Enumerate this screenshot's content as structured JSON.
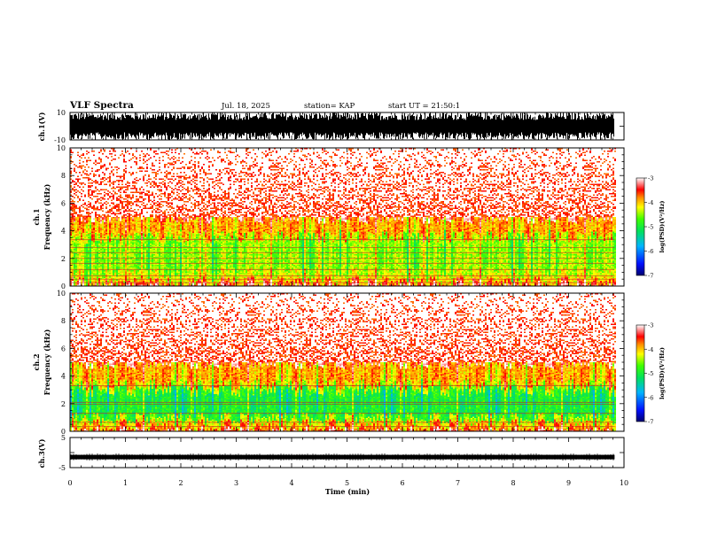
{
  "header": {
    "title": "VLF Spectra",
    "date": "Jul. 18, 2025",
    "station": "station= KAP",
    "start_ut": "start UT =  21:50:1"
  },
  "chart_data": [
    {
      "type": "line",
      "name": "ch1-waveform",
      "ylabel": "ch.1(V)",
      "ylim": [
        -10,
        10
      ],
      "y_tick_labels": [
        "10",
        "-10"
      ],
      "x_range_min": [
        0,
        9.83
      ],
      "description_values": {
        "amplitude_min": -10,
        "amplitude_max": 10
      }
    },
    {
      "type": "heatmap",
      "name": "ch1-spectrogram",
      "ylabel": "ch.1\nFrequency (kHz)",
      "ylim_khz": [
        0,
        10
      ],
      "y_tick_labels": [
        "0",
        "2",
        "4",
        "6",
        "8",
        "10"
      ],
      "x_range_min": [
        0,
        9.83
      ],
      "bands": [
        {
          "f_low": 0.0,
          "f_high": 0.3,
          "log_psd": -3.6
        },
        {
          "f_low": 0.3,
          "f_high": 1.0,
          "log_psd": -4.2
        },
        {
          "f_low": 1.0,
          "f_high": 3.6,
          "log_psd": -4.5
        },
        {
          "f_low": 3.6,
          "f_high": 5.0,
          "log_psd": -3.9
        },
        {
          "f_low": 5.0,
          "f_high": 10.0,
          "log_psd": -3.2
        }
      ]
    },
    {
      "type": "heatmap",
      "name": "ch2-spectrogram",
      "ylabel": "ch.2\nFrequency (kHz)",
      "ylim_khz": [
        0,
        10
      ],
      "y_tick_labels": [
        "0",
        "2",
        "4",
        "6",
        "8",
        "10"
      ],
      "x_range_min": [
        0,
        9.83
      ],
      "bands": [
        {
          "f_low": 0.0,
          "f_high": 0.5,
          "log_psd": -3.8
        },
        {
          "f_low": 0.5,
          "f_high": 1.0,
          "log_psd": -4.3
        },
        {
          "f_low": 1.0,
          "f_high": 3.0,
          "log_psd": -5.0
        },
        {
          "f_low": 3.0,
          "f_high": 3.4,
          "log_psd": -4.4
        },
        {
          "f_low": 3.4,
          "f_high": 5.0,
          "log_psd": -3.9
        },
        {
          "f_low": 5.0,
          "f_high": 10.0,
          "log_psd": -3.2
        }
      ]
    },
    {
      "type": "line",
      "name": "ch3-voltage",
      "ylabel": "ch.3(V)",
      "ylim": [
        -5,
        5
      ],
      "y_tick_labels": [
        "5",
        "-5"
      ],
      "trace_level_v": -1.5,
      "x_range_min": [
        0,
        9.83
      ]
    },
    {
      "type": "axis",
      "name": "time-axis",
      "xlabel": "Time (min)",
      "xlim": [
        0,
        10
      ],
      "x_tick_labels": [
        "0",
        "1",
        "2",
        "3",
        "4",
        "5",
        "6",
        "7",
        "8",
        "9",
        "10"
      ]
    }
  ],
  "colorbars": [
    {
      "label": "log(PSD)(V²/Hz)",
      "range": [
        -7,
        -3
      ],
      "tick_labels": [
        "-3",
        "-4",
        "-5",
        "-6",
        "-7"
      ]
    },
    {
      "label": "log(PSD)(V²/Hz)",
      "range": [
        -7,
        -3
      ],
      "tick_labels": [
        "-3",
        "-4",
        "-5",
        "-6",
        "-7"
      ]
    }
  ]
}
